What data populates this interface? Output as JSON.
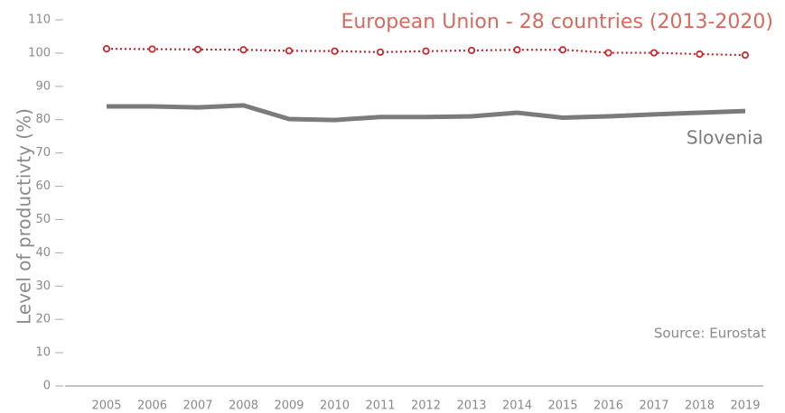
{
  "chart_data": {
    "type": "line",
    "y_label": "Level of productivty (%)",
    "annotation": "Source: Eurostat",
    "categories": [
      "2005",
      "2006",
      "2007",
      "2008",
      "2009",
      "2010",
      "2011",
      "2012",
      "2013",
      "2014",
      "2015",
      "2016",
      "2017",
      "2018",
      "2019"
    ],
    "series": [
      {
        "name": "European Union - 28 countries (2013-2020)",
        "color": "#c8282e",
        "style": "dotted",
        "values": [
          101.3,
          101.2,
          101.1,
          101.0,
          100.7,
          100.6,
          100.3,
          100.6,
          100.8,
          101.0,
          101.0,
          100.1,
          100.1,
          99.7,
          99.4
        ]
      },
      {
        "name": "Slovenia",
        "color": "#7b7b7d",
        "style": "solid",
        "values": [
          84.0,
          84.0,
          83.7,
          84.3,
          80.2,
          79.9,
          80.8,
          80.8,
          81.0,
          82.1,
          80.6,
          81.0,
          81.6,
          82.1,
          82.6
        ]
      }
    ],
    "ylim": [
      0,
      110
    ],
    "yticks": [
      0,
      10,
      20,
      30,
      40,
      50,
      60,
      70,
      80,
      90,
      100,
      110
    ]
  }
}
